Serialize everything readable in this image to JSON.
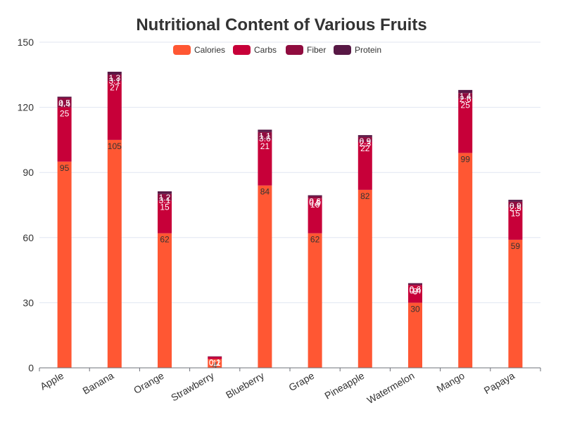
{
  "chart_data": {
    "type": "bar",
    "stacked": true,
    "title": "Nutritional Content of Various Fruits",
    "xlabel": "",
    "ylabel": "",
    "ylim": [
      0,
      150
    ],
    "yticks": [
      0,
      30,
      60,
      90,
      120,
      150
    ],
    "grid": true,
    "legend_position": "top-center",
    "categories": [
      "Apple",
      "Banana",
      "Orange",
      "Strawberry",
      "Blueberry",
      "Grape",
      "Pineapple",
      "Watermelon",
      "Mango",
      "Papaya"
    ],
    "series": [
      {
        "name": "Calories",
        "color": "#ff5733",
        "label_color": "#333333",
        "values": [
          95,
          105,
          62,
          4,
          84,
          62,
          82,
          30,
          99,
          59
        ]
      },
      {
        "name": "Carbs",
        "color": "#c70039",
        "label_color": "#ffffff",
        "values": [
          25,
          27,
          15,
          1,
          21,
          16,
          22,
          8,
          25,
          15
        ]
      },
      {
        "name": "Fiber",
        "color": "#900c3f",
        "label_color": "#ffffff",
        "values": [
          4.4,
          3.1,
          3.1,
          0.2,
          3.6,
          0.9,
          2.3,
          0.4,
          2.6,
          2.5
        ]
      },
      {
        "name": "Protein",
        "color": "#581845",
        "label_color": "#ffffff",
        "values": [
          0.5,
          1.3,
          1.2,
          0.1,
          1.1,
          0.6,
          0.9,
          0.6,
          1.4,
          0.9
        ]
      }
    ]
  }
}
